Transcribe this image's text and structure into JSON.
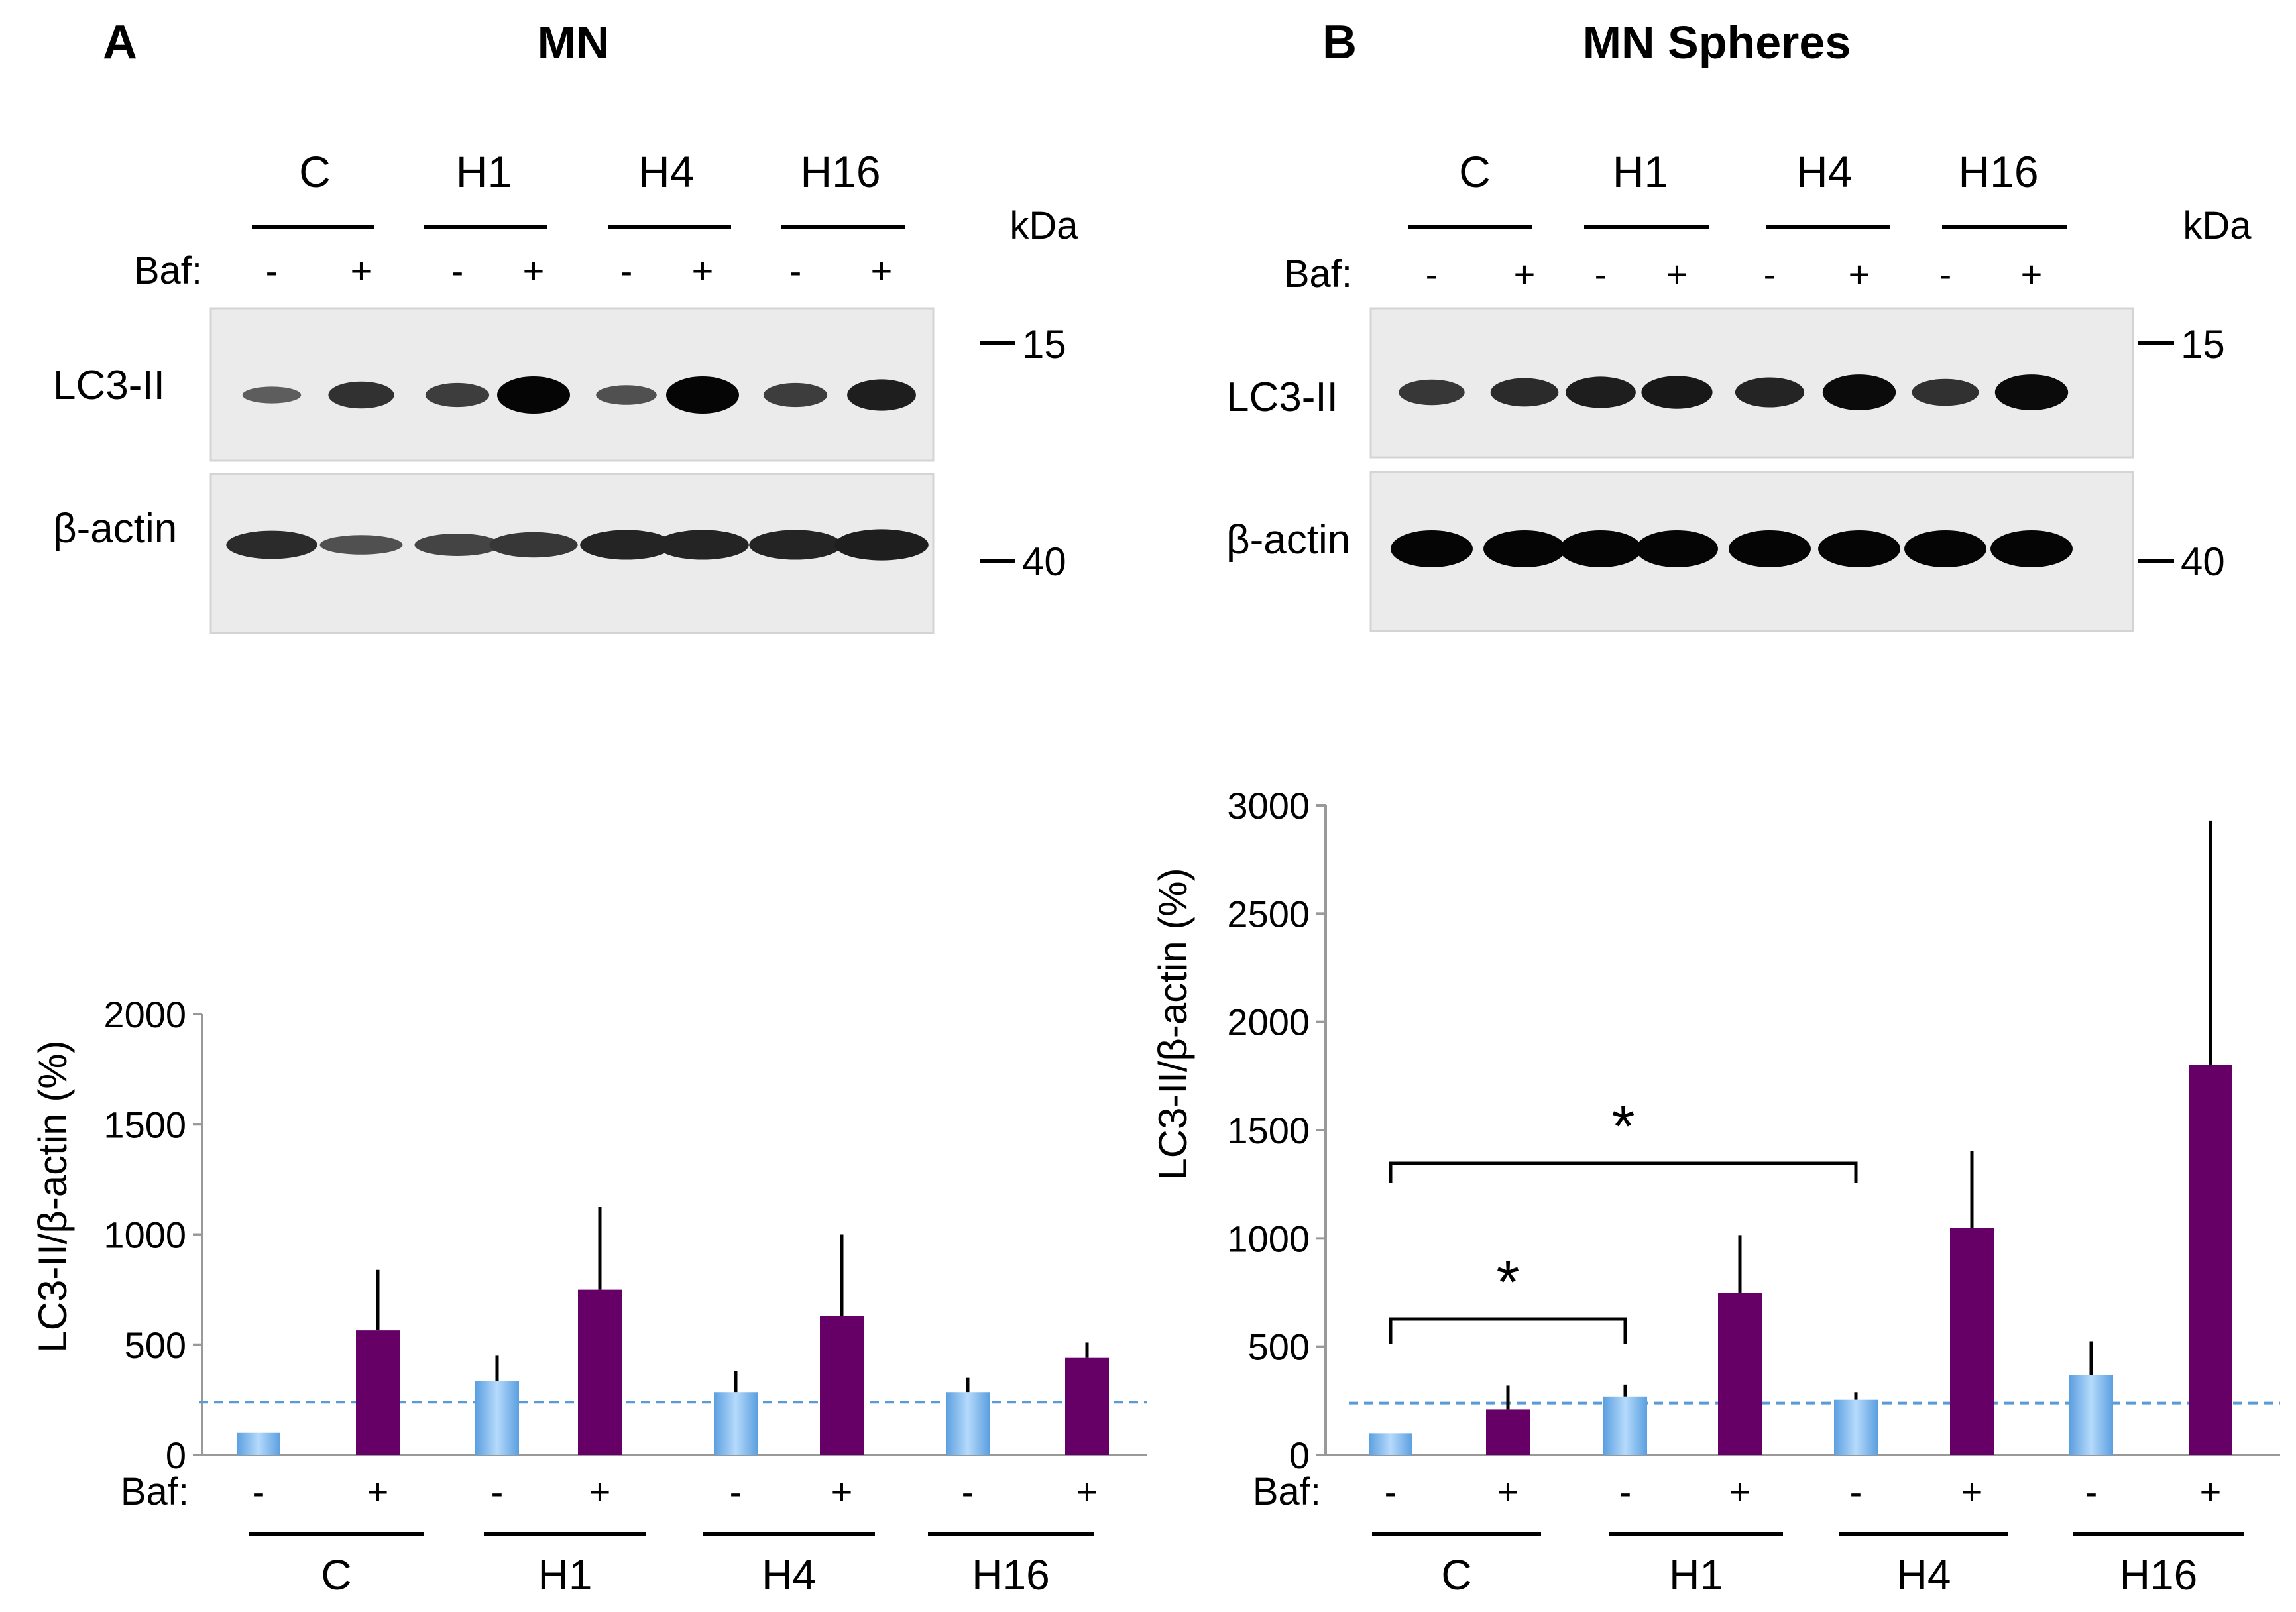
{
  "panels": [
    {
      "letter": "A",
      "title": "MN",
      "blot": {
        "groups": [
          "C",
          "H1",
          "H4",
          "H16"
        ],
        "baf_label": "Baf:",
        "baf_marks": [
          "-",
          "+",
          "-",
          "+",
          "-",
          "+",
          "-",
          "+"
        ],
        "kda_label": "kDa",
        "rows": [
          {
            "name": "LC3-II",
            "marker": "15",
            "band_intensity": [
              0.3,
              0.65,
              0.55,
              1.0,
              0.4,
              1.0,
              0.55,
              0.8
            ]
          },
          {
            "name": "β-actin",
            "marker": "40",
            "band_intensity": [
              0.7,
              0.4,
              0.5,
              0.6,
              0.75,
              0.75,
              0.75,
              0.8
            ]
          }
        ]
      }
    },
    {
      "letter": "B",
      "title": "MN Spheres",
      "blot": {
        "groups": [
          "C",
          "H1",
          "H4",
          "H16"
        ],
        "baf_label": "Baf:",
        "baf_marks": [
          "-",
          "+",
          "-",
          "+",
          "-",
          "+",
          "-",
          "+"
        ],
        "kda_label": "kDa",
        "rows": [
          {
            "name": "LC3-II",
            "marker": "15",
            "band_intensity": [
              0.6,
              0.7,
              0.8,
              0.85,
              0.75,
              0.95,
              0.65,
              0.95
            ]
          },
          {
            "name": "β-actin",
            "marker": "40",
            "band_intensity": [
              1.0,
              1.0,
              1.0,
              1.0,
              1.0,
              1.0,
              1.0,
              1.0
            ]
          }
        ]
      }
    }
  ],
  "chart_data": [
    {
      "type": "bar",
      "panel": "A",
      "ylabel": "LC3-II/β-actin (%)",
      "ylim": [
        0,
        2000
      ],
      "yticks": [
        "0",
        "500",
        "1000",
        "1500",
        "2000"
      ],
      "groups": [
        "C",
        "H1",
        "H4",
        "H16"
      ],
      "baf_label": "Baf:",
      "baf_marks": [
        "-",
        "+",
        "-",
        "+",
        "-",
        "+",
        "-",
        "+"
      ],
      "baseline": 240,
      "series": [
        {
          "name": "Baf -",
          "color": "#8fc3f2",
          "values": [
            100,
            335,
            285,
            285
          ],
          "errors": [
            0,
            115,
            95,
            65
          ]
        },
        {
          "name": "Baf +",
          "color": "#660066",
          "values": [
            565,
            750,
            630,
            440
          ],
          "errors": [
            275,
            375,
            370,
            70
          ]
        }
      ],
      "significance": []
    },
    {
      "type": "bar",
      "panel": "B",
      "ylabel": "LC3-II/β-actin (%)",
      "ylim": [
        0,
        3000
      ],
      "yticks": [
        "0",
        "500",
        "1000",
        "1500",
        "2000",
        "2500",
        "3000"
      ],
      "groups": [
        "C",
        "H1",
        "H4",
        "H16"
      ],
      "baf_label": "Baf:",
      "baf_marks": [
        "-",
        "+",
        "-",
        "+",
        "-",
        "+",
        "-",
        "+"
      ],
      "baseline": 240,
      "series": [
        {
          "name": "Baf -",
          "color": "#8fc3f2",
          "values": [
            100,
            270,
            255,
            370
          ],
          "errors": [
            0,
            55,
            35,
            155
          ]
        },
        {
          "name": "Baf +",
          "color": "#660066",
          "values": [
            210,
            750,
            1050,
            1800
          ],
          "errors": [
            110,
            265,
            355,
            1130
          ]
        }
      ],
      "significance": [
        {
          "label": "*",
          "from_bar": 0,
          "to_bar": 2
        },
        {
          "label": "*",
          "from_bar": 0,
          "to_bar": 4
        }
      ]
    }
  ]
}
